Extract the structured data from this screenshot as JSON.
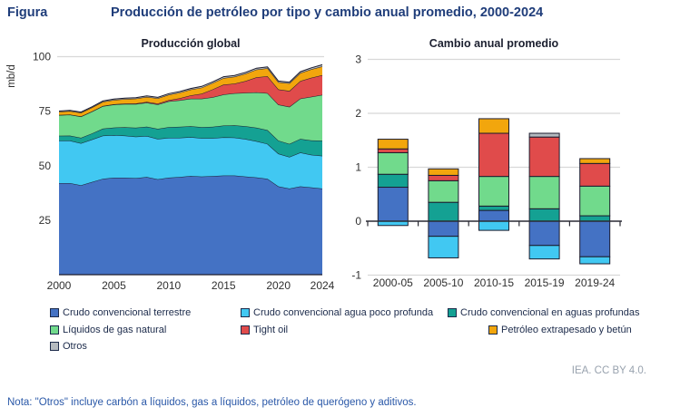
{
  "header": {
    "kicker": "Figura",
    "title": "Producción de petróleo por tipo y cambio anual promedio, 2000-2024"
  },
  "series_meta": [
    {
      "label": "Crudo convencional terrestre",
      "color": "#4472c4"
    },
    {
      "label": "Crudo convencional agua poco profunda",
      "color": "#41c8f2"
    },
    {
      "label": "Crudo convencional en aguas profundas",
      "color": "#14a193"
    },
    {
      "label": "Líquidos de gas natural",
      "color": "#71da8c"
    },
    {
      "label": "Tight oil",
      "color": "#e04b4b"
    },
    {
      "label": "Petróleo extrapesado y betún",
      "color": "#f2a60d"
    },
    {
      "label": "Otros",
      "color": "#b4babf"
    }
  ],
  "colors": {
    "stroke": "#1c1c2e",
    "grid": "#d8d8d8",
    "axis_text": "#2f2f2f",
    "chart_title": "#1c2030",
    "figure_title": "#1f3d7a",
    "note": "#2a58a8",
    "attribution": "#98a2ae"
  },
  "chart_data": [
    {
      "type": "area",
      "title": "Producción global",
      "ylabel": "mb/d",
      "x_range": [
        2000,
        2024
      ],
      "xticks": [
        2000,
        2005,
        2010,
        2015,
        2020,
        2024
      ],
      "yticks": [
        25,
        50,
        75,
        100
      ],
      "ylim": [
        0,
        100
      ],
      "stacked": true,
      "series": [
        {
          "name": "Crudo convencional terrestre",
          "values": [
            42.0,
            42.0,
            41.0,
            42.5,
            44.0,
            44.5,
            44.5,
            44.3,
            44.8,
            43.8,
            44.5,
            44.8,
            45.3,
            45.0,
            45.2,
            45.5,
            45.5,
            45.0,
            44.6,
            44.0,
            40.5,
            39.5,
            40.5,
            40.0,
            39.5
          ]
        },
        {
          "name": "Crudo convencional agua poco profunda",
          "values": [
            19.5,
            19.5,
            19.3,
            19.5,
            19.8,
            19.5,
            19.3,
            19.0,
            18.8,
            18.5,
            18.3,
            18.0,
            17.8,
            17.6,
            17.4,
            17.5,
            17.4,
            17.2,
            16.6,
            16.0,
            15.0,
            14.5,
            15.5,
            15.0,
            15.0
          ]
        },
        {
          "name": "Crudo convencional en aguas profundas",
          "values": [
            2.2,
            2.3,
            2.5,
            2.8,
            3.2,
            3.5,
            3.8,
            4.1,
            4.3,
            4.6,
            4.9,
            5.0,
            5.0,
            5.1,
            5.2,
            5.4,
            5.6,
            5.9,
            6.2,
            6.3,
            6.0,
            6.0,
            6.3,
            6.6,
            7.0
          ]
        },
        {
          "name": "Líquidos de gas natural",
          "values": [
            9.5,
            9.6,
            9.7,
            10.0,
            10.3,
            10.5,
            10.7,
            10.9,
            11.0,
            11.2,
            11.8,
            12.2,
            12.6,
            13.0,
            13.6,
            14.2,
            14.7,
            15.3,
            16.2,
            17.0,
            16.5,
            17.0,
            18.5,
            20.0,
            21.0
          ]
        },
        {
          "name": "Tight oil",
          "values": [
            0.05,
            0.05,
            0.1,
            0.1,
            0.1,
            0.15,
            0.2,
            0.25,
            0.35,
            0.4,
            0.55,
            0.9,
            1.5,
            2.3,
            3.6,
            4.6,
            4.4,
            5.4,
            6.9,
            7.7,
            7.0,
            7.3,
            8.0,
            8.7,
            9.0
          ]
        },
        {
          "name": "Petróleo extrapesado y betún",
          "values": [
            1.5,
            1.6,
            1.7,
            1.8,
            1.9,
            2.0,
            2.1,
            2.2,
            2.3,
            2.4,
            2.5,
            2.6,
            2.7,
            2.8,
            2.9,
            3.0,
            3.2,
            3.4,
            3.6,
            3.7,
            3.3,
            3.5,
            3.7,
            3.9,
            4.0
          ]
        },
        {
          "name": "Otros",
          "values": [
            0.3,
            0.3,
            0.3,
            0.3,
            0.35,
            0.4,
            0.4,
            0.4,
            0.45,
            0.45,
            0.5,
            0.5,
            0.5,
            0.55,
            0.55,
            0.6,
            0.6,
            0.6,
            0.6,
            0.6,
            0.5,
            0.5,
            0.6,
            0.7,
            0.8
          ]
        }
      ]
    },
    {
      "type": "bar",
      "title": "Cambio anual promedio",
      "categories": [
        "2000-05",
        "2005-10",
        "2010-15",
        "2015-19",
        "2019-24"
      ],
      "yticks": [
        3,
        2,
        1,
        0,
        -1
      ],
      "ylim": [
        -1,
        3
      ],
      "stacked": true,
      "series": [
        {
          "name": "Crudo convencional terrestre",
          "values": [
            0.63,
            -0.28,
            0.2,
            -0.45,
            -0.66
          ]
        },
        {
          "name": "Crudo convencional agua poco profunda",
          "values": [
            -0.08,
            -0.4,
            -0.17,
            -0.25,
            -0.13
          ]
        },
        {
          "name": "Crudo convencional en aguas profundas",
          "values": [
            0.24,
            0.35,
            0.08,
            0.23,
            0.1
          ]
        },
        {
          "name": "Líquidos de gas natural",
          "values": [
            0.4,
            0.4,
            0.55,
            0.6,
            0.55
          ]
        },
        {
          "name": "Tight oil",
          "values": [
            0.07,
            0.1,
            0.8,
            0.73,
            0.42
          ]
        },
        {
          "name": "Petróleo extrapesado y betún",
          "values": [
            0.18,
            0.12,
            0.27,
            0.0,
            0.09
          ]
        },
        {
          "name": "Otros",
          "values": [
            0.0,
            0.0,
            0.0,
            0.07,
            0.0
          ]
        }
      ]
    }
  ],
  "attribution": "IEA. CC BY 4.0.",
  "note": "Nota: \"Otros\" incluye carbón a líquidos, gas a líquidos, petróleo de querógeno y aditivos."
}
